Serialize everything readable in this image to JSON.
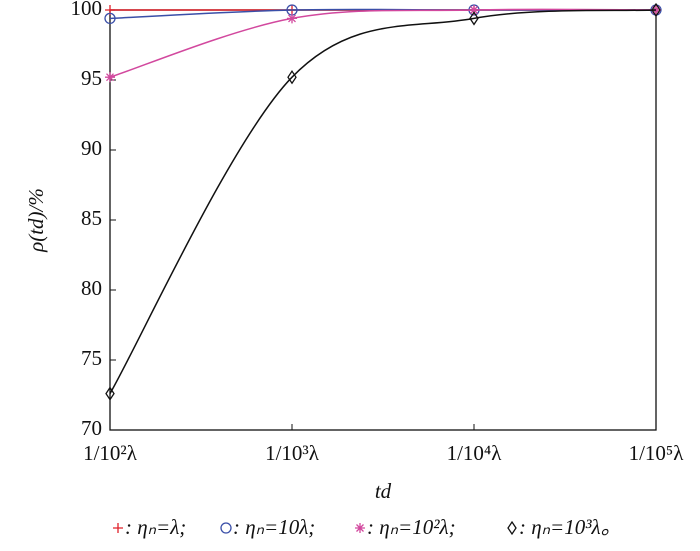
{
  "chart_data": {
    "type": "line",
    "categories": [
      "1/10²λ",
      "1/10³λ",
      "1/10⁴λ",
      "1/10⁵λ"
    ],
    "series": [
      {
        "name": ": ηₙ=λ;",
        "color": "#e0202a",
        "marker": "plus",
        "values": [
          100,
          100,
          100,
          100
        ]
      },
      {
        "name": ": ηₙ=10λ;",
        "color": "#3a4fa8",
        "marker": "circle",
        "values": [
          99.4,
          100,
          100,
          100
        ]
      },
      {
        "name": ": ηₙ=10²λ;",
        "color": "#d2489e",
        "marker": "star",
        "values": [
          95.2,
          99.4,
          100,
          100
        ]
      },
      {
        "name": ": ηₙ=10³λ。",
        "color": "#111111",
        "marker": "diamond",
        "values": [
          72.6,
          95.2,
          99.4,
          100
        ]
      }
    ],
    "ylim": [
      70,
      100
    ],
    "yticks": [
      70,
      75,
      80,
      85,
      90,
      95,
      100
    ],
    "xlabel": "td",
    "ylabel": "ρ(td)/%",
    "smooth": true,
    "grid": false
  }
}
